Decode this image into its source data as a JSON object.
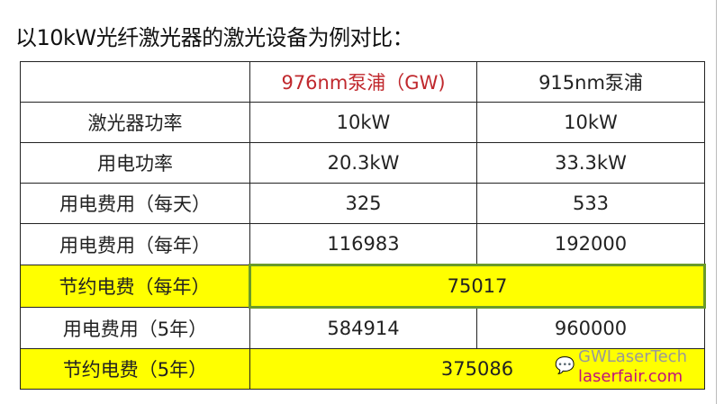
{
  "title": "以10kW光纤激光器的激光设备为例对比：",
  "table": {
    "headers": [
      "",
      "976nm泵浦（GW)",
      "915nm泵浦"
    ],
    "header_highlight_color": "#c0282d",
    "highlight_color": "#ffff00",
    "rows": [
      {
        "label": "激光器功率",
        "a": "10kW",
        "b": "10kW"
      },
      {
        "label": "用电功率",
        "a": "20.3kW",
        "b": "33.3kW"
      },
      {
        "label": "用电费用（每天）",
        "a": "325",
        "b": "533"
      },
      {
        "label": "用电费用（每年）",
        "a": "116983",
        "b": "192000"
      },
      {
        "label": "节约电费（每年）",
        "merged": "75017",
        "highlight": true
      },
      {
        "label": "用电费用（5年）",
        "a": "584914",
        "b": "960000"
      },
      {
        "label": "节约电费（5年）",
        "merged": "375086",
        "highlight": true
      }
    ]
  },
  "watermark": {
    "icon": "wechat-icon",
    "text1": "GWLaserTech",
    "text2": "laserfair.com"
  }
}
